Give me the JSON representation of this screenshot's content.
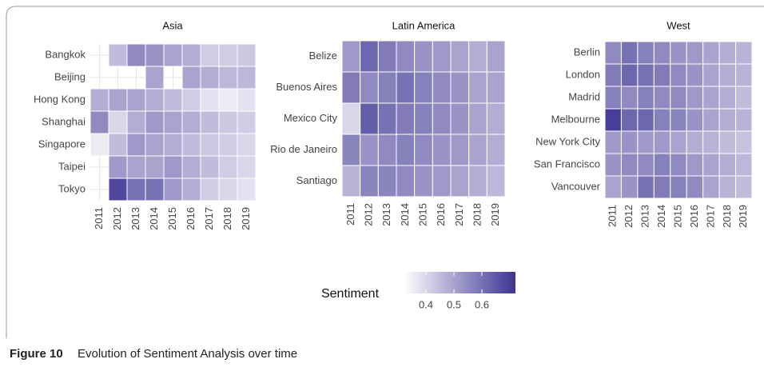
{
  "chart_data": [
    {
      "type": "heatmap",
      "title": "Asia",
      "categories": [
        "2011",
        "2012",
        "2013",
        "2014",
        "2015",
        "2016",
        "2017",
        "2018",
        "2019"
      ],
      "rows": [
        "Bangkok",
        "Beijing",
        "Hong Kong",
        "Shanghai",
        "Singapore",
        "Taipei",
        "Tokyo"
      ],
      "values": [
        [
          null,
          0.45,
          0.55,
          0.53,
          0.5,
          0.48,
          0.42,
          0.42,
          0.43
        ],
        [
          null,
          null,
          null,
          0.5,
          null,
          0.5,
          0.48,
          0.46,
          0.46
        ],
        [
          0.48,
          0.5,
          0.5,
          0.48,
          0.45,
          0.42,
          0.38,
          0.36,
          0.38
        ],
        [
          0.55,
          0.4,
          0.48,
          0.52,
          0.5,
          0.48,
          0.45,
          0.43,
          0.42
        ],
        [
          0.36,
          0.45,
          0.52,
          0.5,
          0.48,
          0.45,
          0.43,
          0.42,
          0.4
        ],
        [
          null,
          0.52,
          0.5,
          0.5,
          0.52,
          0.48,
          0.45,
          0.42,
          0.4
        ],
        [
          null,
          0.68,
          0.6,
          0.6,
          0.52,
          0.48,
          0.42,
          0.4,
          0.38
        ]
      ]
    },
    {
      "type": "heatmap",
      "title": "Latin America",
      "categories": [
        "2011",
        "2012",
        "2013",
        "2014",
        "2015",
        "2016",
        "2017",
        "2018",
        "2019"
      ],
      "rows": [
        "Belize",
        "Buenos Aires",
        "Mexico City",
        "Rio de Janeiro",
        "Santiago"
      ],
      "values": [
        [
          0.52,
          0.62,
          0.58,
          0.55,
          0.53,
          0.52,
          0.5,
          0.48,
          0.5
        ],
        [
          0.58,
          0.55,
          0.57,
          0.6,
          0.57,
          0.55,
          0.53,
          0.5,
          0.5
        ],
        [
          0.4,
          0.64,
          0.6,
          0.58,
          0.57,
          0.55,
          0.53,
          0.5,
          0.48
        ],
        [
          0.56,
          0.53,
          0.55,
          0.57,
          0.55,
          0.53,
          0.52,
          0.5,
          0.48
        ],
        [
          0.47,
          0.56,
          0.56,
          0.55,
          0.53,
          0.52,
          0.5,
          0.48,
          0.46
        ]
      ]
    },
    {
      "type": "heatmap",
      "title": "West",
      "categories": [
        "2011",
        "2012",
        "2013",
        "2014",
        "2015",
        "2016",
        "2017",
        "2018",
        "2019"
      ],
      "rows": [
        "Berlin",
        "London",
        "Madrid",
        "Melbourne",
        "New York City",
        "San Francisco",
        "Vancouver"
      ],
      "values": [
        [
          0.55,
          0.6,
          0.57,
          0.55,
          0.53,
          0.52,
          0.5,
          0.48,
          0.47
        ],
        [
          0.58,
          0.62,
          0.6,
          0.58,
          0.55,
          0.53,
          0.5,
          0.48,
          0.47
        ],
        [
          0.57,
          0.55,
          0.57,
          0.55,
          0.55,
          0.52,
          0.5,
          0.48,
          0.45
        ],
        [
          0.7,
          0.62,
          0.62,
          0.57,
          0.56,
          0.53,
          0.5,
          0.48,
          0.47
        ],
        [
          0.52,
          0.53,
          0.52,
          0.52,
          0.5,
          0.48,
          0.47,
          0.45,
          0.44
        ],
        [
          0.53,
          0.55,
          0.55,
          0.57,
          0.55,
          0.52,
          0.5,
          0.48,
          0.46
        ],
        [
          0.5,
          0.53,
          0.6,
          0.58,
          0.57,
          0.55,
          0.5,
          0.47,
          0.45
        ]
      ]
    }
  ],
  "colorbar": {
    "title": "Sentiment",
    "lim": [
      0.32,
      0.72
    ],
    "ticks": [
      0.4,
      0.5,
      0.6
    ],
    "colors": [
      "#ffffff",
      "#3e3492"
    ]
  },
  "caption": {
    "label": "Figure 10",
    "text": "Evolution of Sentiment Analysis over time"
  }
}
